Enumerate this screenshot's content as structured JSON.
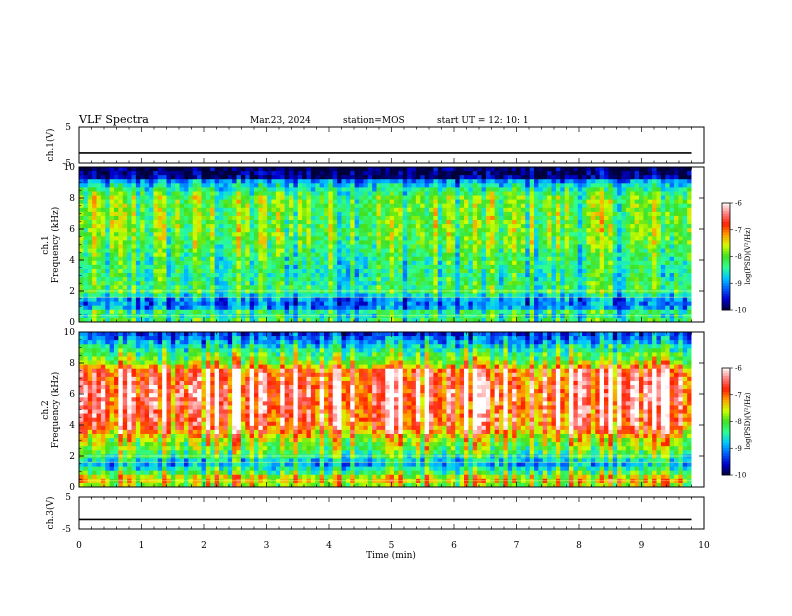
{
  "header": {
    "title": "VLF Spectra",
    "date": "Mar.23, 2024",
    "station": "station=MOS",
    "start": "start  UT =   12: 10: 1"
  },
  "chart_data": [
    {
      "type": "line",
      "panel": "ch1-voltage",
      "ylabel": "ch.1(V)",
      "ylim": [
        -5,
        5
      ],
      "yticks": [
        "5",
        "-5"
      ],
      "x": [
        0,
        9.8
      ],
      "values": [
        -2.2,
        -2.2
      ],
      "line_color": "#000000"
    },
    {
      "type": "heatmap",
      "panel": "ch1-spectrogram",
      "ylabel": "ch.1\nFrequency (kHz)",
      "xlim": [
        0,
        10
      ],
      "ylim": [
        0,
        10
      ],
      "yticks": [
        "0",
        "2",
        "4",
        "6",
        "8",
        "10"
      ],
      "data_xmax": 9.8,
      "colorbar": {
        "label": "log(PSD)(V²/Hz)",
        "range": [
          -10,
          -6
        ],
        "ticks": [
          "-6",
          "-7",
          "-8",
          "-9",
          "-10"
        ]
      },
      "profile": [
        {
          "f": 0.0,
          "level": 0.5
        },
        {
          "f": 0.3,
          "level": 0.35
        },
        {
          "f": 0.6,
          "level": 0.45
        },
        {
          "f": 1.0,
          "level": 0.2
        },
        {
          "f": 1.5,
          "level": 0.25
        },
        {
          "f": 2.0,
          "level": 0.45
        },
        {
          "f": 3.0,
          "level": 0.4
        },
        {
          "f": 4.0,
          "level": 0.42
        },
        {
          "f": 5.0,
          "level": 0.48
        },
        {
          "f": 6.0,
          "level": 0.5
        },
        {
          "f": 7.0,
          "level": 0.5
        },
        {
          "f": 8.0,
          "level": 0.5
        },
        {
          "f": 9.0,
          "level": 0.3
        },
        {
          "f": 9.3,
          "level": 0.05
        },
        {
          "f": 10.0,
          "level": 0.0
        }
      ],
      "lines_khz": [
        1.6,
        2.0,
        0.4
      ]
    },
    {
      "type": "heatmap",
      "panel": "ch2-spectrogram",
      "ylabel": "ch.2\nFrequency (kHz)",
      "xlim": [
        0,
        10
      ],
      "ylim": [
        0,
        10
      ],
      "yticks": [
        "0",
        "2",
        "4",
        "6",
        "8",
        "10"
      ],
      "data_xmax": 9.8,
      "colorbar": {
        "label": "log(PSD)(V²/Hz)",
        "range": [
          -10,
          -6
        ],
        "ticks": [
          "-6",
          "-7",
          "-8",
          "-9",
          "-10"
        ]
      },
      "profile": [
        {
          "f": 0.0,
          "level": 0.55
        },
        {
          "f": 0.5,
          "level": 0.7
        },
        {
          "f": 1.0,
          "level": 0.45
        },
        {
          "f": 1.5,
          "level": 0.3
        },
        {
          "f": 2.0,
          "level": 0.45
        },
        {
          "f": 2.5,
          "level": 0.55
        },
        {
          "f": 3.0,
          "level": 0.6
        },
        {
          "f": 3.5,
          "level": 0.75
        },
        {
          "f": 4.0,
          "level": 0.85
        },
        {
          "f": 6.0,
          "level": 0.92
        },
        {
          "f": 7.5,
          "level": 0.85
        },
        {
          "f": 8.0,
          "level": 0.6
        },
        {
          "f": 9.0,
          "level": 0.4
        },
        {
          "f": 9.5,
          "level": 0.25
        },
        {
          "f": 10.0,
          "level": 0.15
        }
      ],
      "lines_khz": [
        1.6,
        2.0,
        0.4
      ]
    },
    {
      "type": "line",
      "panel": "ch3-voltage",
      "ylabel": "ch.3(V)",
      "ylim": [
        -5,
        5
      ],
      "yticks": [
        "5",
        "-5"
      ],
      "x": [
        0,
        9.8
      ],
      "values": [
        -2.0,
        -2.0
      ],
      "line_color": "#000000"
    }
  ],
  "xaxis": {
    "label": "Time (min)",
    "range": [
      0,
      10
    ],
    "ticks": [
      "0",
      "1",
      "2",
      "3",
      "4",
      "5",
      "6",
      "7",
      "8",
      "9",
      "10"
    ]
  },
  "colormap": [
    "#00003a",
    "#0000d0",
    "#0060ff",
    "#00c8ff",
    "#30ff90",
    "#40e020",
    "#d0ff00",
    "#ffa000",
    "#ff2000",
    "#ff8080",
    "#ffffff"
  ]
}
